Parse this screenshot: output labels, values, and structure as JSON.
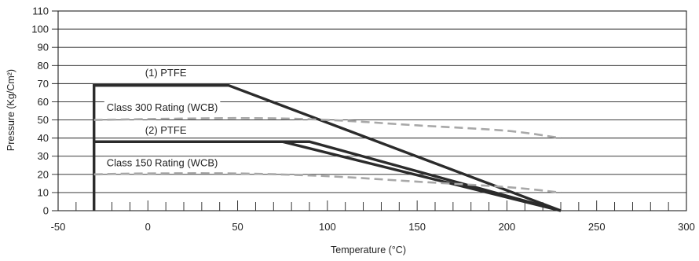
{
  "chart_data": {
    "type": "line",
    "xlabel": "Temperature (°C)",
    "ylabel": "Pressure (Kg/Cm²)",
    "xlim": [
      -50,
      300
    ],
    "ylim": [
      0,
      110
    ],
    "x_ticks": [
      -50,
      0,
      50,
      100,
      150,
      200,
      250,
      300
    ],
    "y_ticks": [
      0,
      10,
      20,
      30,
      40,
      50,
      60,
      70,
      80,
      90,
      100,
      110
    ],
    "grid": "horizontal lines at every 10; minor x ticks every 10",
    "legend": "none; series labeled inline",
    "series": [
      {
        "name": "(1) PTFE",
        "style": "solid",
        "color": "#2b2b2b",
        "points": [
          [
            -30,
            0
          ],
          [
            -30,
            69
          ],
          [
            45,
            69
          ],
          [
            230,
            0
          ]
        ]
      },
      {
        "name": "(2) PTFE",
        "style": "solid",
        "color": "#2b2b2b",
        "points": [
          [
            -30,
            38
          ],
          [
            90,
            38
          ],
          [
            230,
            0
          ]
        ]
      },
      {
        "name": "",
        "style": "solid",
        "color": "#2b2b2b",
        "points": [
          [
            75,
            38
          ],
          [
            230,
            0
          ]
        ]
      },
      {
        "name": "Class 300 Rating (WCB)",
        "style": "dashed",
        "color": "#a8a8a8",
        "points": [
          [
            -30,
            50
          ],
          [
            50,
            51
          ],
          [
            100,
            50
          ],
          [
            150,
            47
          ],
          [
            200,
            44
          ],
          [
            230,
            40
          ]
        ]
      },
      {
        "name": "Class 150 Rating (WCB)",
        "style": "dashed",
        "color": "#a8a8a8",
        "points": [
          [
            -30,
            20
          ],
          [
            0,
            20.5
          ],
          [
            50,
            20.5
          ],
          [
            100,
            19
          ],
          [
            150,
            16
          ],
          [
            200,
            13
          ],
          [
            230,
            10
          ]
        ]
      }
    ],
    "annotations": [
      {
        "text": "(1) PTFE",
        "x": 10,
        "y": 74
      },
      {
        "text": "Class 300 Rating (WCB)",
        "x": 8,
        "y": 55
      },
      {
        "text": "(2) PTFE",
        "x": 10,
        "y": 42.5
      },
      {
        "text": "Class 150 Rating (WCB)",
        "x": 8,
        "y": 24.5
      }
    ]
  },
  "colors": {
    "axis": "#222222",
    "grid": "#222222",
    "dark_series": "#2b2b2b",
    "rating_series": "#a8a8a8"
  }
}
